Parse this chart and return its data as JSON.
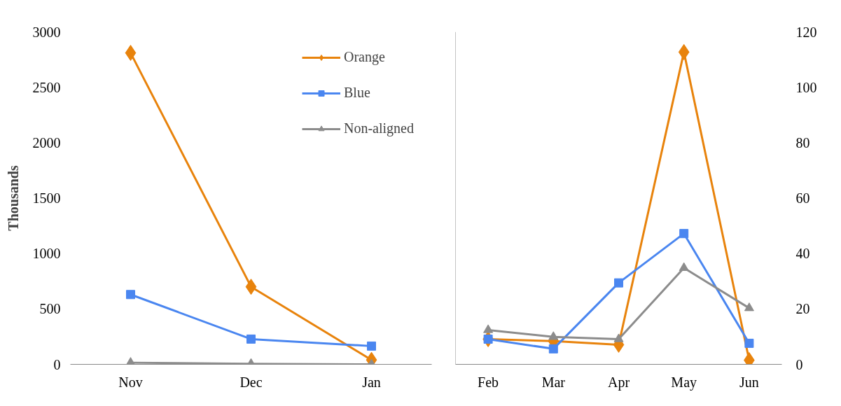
{
  "chart_data": [
    {
      "type": "line",
      "categories": [
        "Nov",
        "Dec",
        "Jan"
      ],
      "ylabel": "Thousands",
      "ylim": [
        0,
        3000
      ],
      "yticks": [
        0,
        500,
        1000,
        1500,
        2000,
        2500,
        3000
      ],
      "grid": false,
      "legend": "top right",
      "line_style": "solid",
      "series": [
        {
          "name": "Orange",
          "color": "#e8830c",
          "marker": "diamond",
          "values": [
            2810,
            700,
            40
          ]
        },
        {
          "name": "Blue",
          "color": "#4a86f0",
          "marker": "square",
          "values": [
            630,
            228,
            165
          ]
        },
        {
          "name": "Non-aligned",
          "color": "#8c8c8c",
          "marker": "triangle",
          "values": [
            15,
            5,
            0
          ]
        }
      ]
    },
    {
      "type": "line",
      "categories": [
        "Feb",
        "Mar",
        "Apr",
        "May",
        "Jun"
      ],
      "ylim": [
        0,
        120
      ],
      "yticks": [
        0,
        20,
        40,
        60,
        80,
        100,
        120
      ],
      "grid": false,
      "line_style": "solid",
      "series": [
        {
          "color": "#e8830c",
          "marker": "diamond",
          "values": [
            9.1,
            8.4,
            7.1,
            112.7,
            1.5
          ]
        },
        {
          "color": "#4a86f0",
          "marker": "square",
          "values": [
            9.1,
            5.6,
            29.4,
            47.2,
            7.6
          ]
        },
        {
          "color": "#8c8c8c",
          "marker": "triangle",
          "values": [
            12.4,
            9.9,
            9.1,
            34.8,
            20.3
          ]
        }
      ]
    }
  ]
}
